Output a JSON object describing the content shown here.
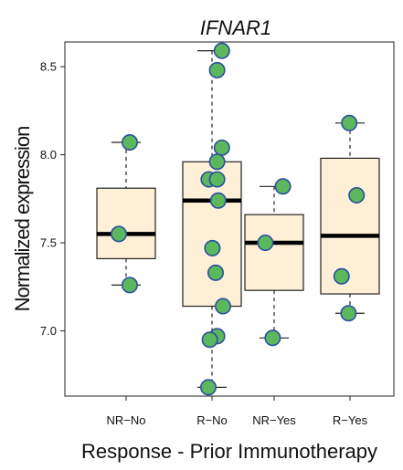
{
  "chart_data": {
    "type": "box",
    "title": "IFNAR1",
    "xlabel": "Response - Prior Immunotherapy",
    "ylabel": "Normalized expression",
    "ylim": [
      6.63,
      8.64
    ],
    "yticks": [
      "7.0",
      "7.5",
      "8.0",
      "8.5"
    ],
    "ytick_values": [
      7.0,
      7.5,
      8.0,
      8.5
    ],
    "categories": [
      "NR−No",
      "R−No",
      "NR−Yes",
      "R−Yes"
    ],
    "box_fill": "#fdf0d7",
    "point_fill": "#5cb85c",
    "point_stroke": "#2b4f9e",
    "boxes": [
      {
        "category": "NR−No",
        "whisker_low": 7.26,
        "q1": 7.41,
        "median": 7.55,
        "q3": 7.81,
        "whisker_high": 8.07
      },
      {
        "category": "R−No",
        "whisker_low": 6.68,
        "q1": 7.14,
        "median": 7.74,
        "q3": 7.96,
        "whisker_high": 8.59
      },
      {
        "category": "NR−Yes",
        "whisker_low": 6.96,
        "q1": 7.23,
        "median": 7.5,
        "q3": 7.66,
        "whisker_high": 7.82
      },
      {
        "category": "R−Yes",
        "whisker_low": 7.1,
        "q1": 7.21,
        "median": 7.54,
        "q3": 7.98,
        "whisker_high": 8.18
      }
    ],
    "points": [
      {
        "group": 0,
        "jitter": 0.1,
        "y": 8.07
      },
      {
        "group": 0,
        "jitter": -0.2,
        "y": 7.55
      },
      {
        "group": 0,
        "jitter": 0.1,
        "y": 7.26
      },
      {
        "group": 1,
        "jitter": 0.27,
        "y": 8.59
      },
      {
        "group": 1,
        "jitter": 0.14,
        "y": 8.48
      },
      {
        "group": 1,
        "jitter": 0.27,
        "y": 8.04
      },
      {
        "group": 1,
        "jitter": 0.14,
        "y": 7.96
      },
      {
        "group": 1,
        "jitter": -0.09,
        "y": 7.86
      },
      {
        "group": 1,
        "jitter": 0.14,
        "y": 7.86
      },
      {
        "group": 1,
        "jitter": 0.17,
        "y": 7.74
      },
      {
        "group": 1,
        "jitter": 0.01,
        "y": 7.47
      },
      {
        "group": 1,
        "jitter": 0.1,
        "y": 7.33
      },
      {
        "group": 1,
        "jitter": 0.3,
        "y": 7.14
      },
      {
        "group": 1,
        "jitter": 0.14,
        "y": 6.97
      },
      {
        "group": 1,
        "jitter": -0.06,
        "y": 6.95
      },
      {
        "group": 1,
        "jitter": -0.1,
        "y": 6.68
      },
      {
        "group": 2,
        "jitter": 0.24,
        "y": 7.82
      },
      {
        "group": 2,
        "jitter": -0.24,
        "y": 7.5
      },
      {
        "group": 2,
        "jitter": -0.04,
        "y": 6.96
      },
      {
        "group": 3,
        "jitter": -0.02,
        "y": 8.18
      },
      {
        "group": 3,
        "jitter": 0.18,
        "y": 7.77
      },
      {
        "group": 3,
        "jitter": -0.23,
        "y": 7.31
      },
      {
        "group": 3,
        "jitter": -0.04,
        "y": 7.1
      }
    ]
  }
}
